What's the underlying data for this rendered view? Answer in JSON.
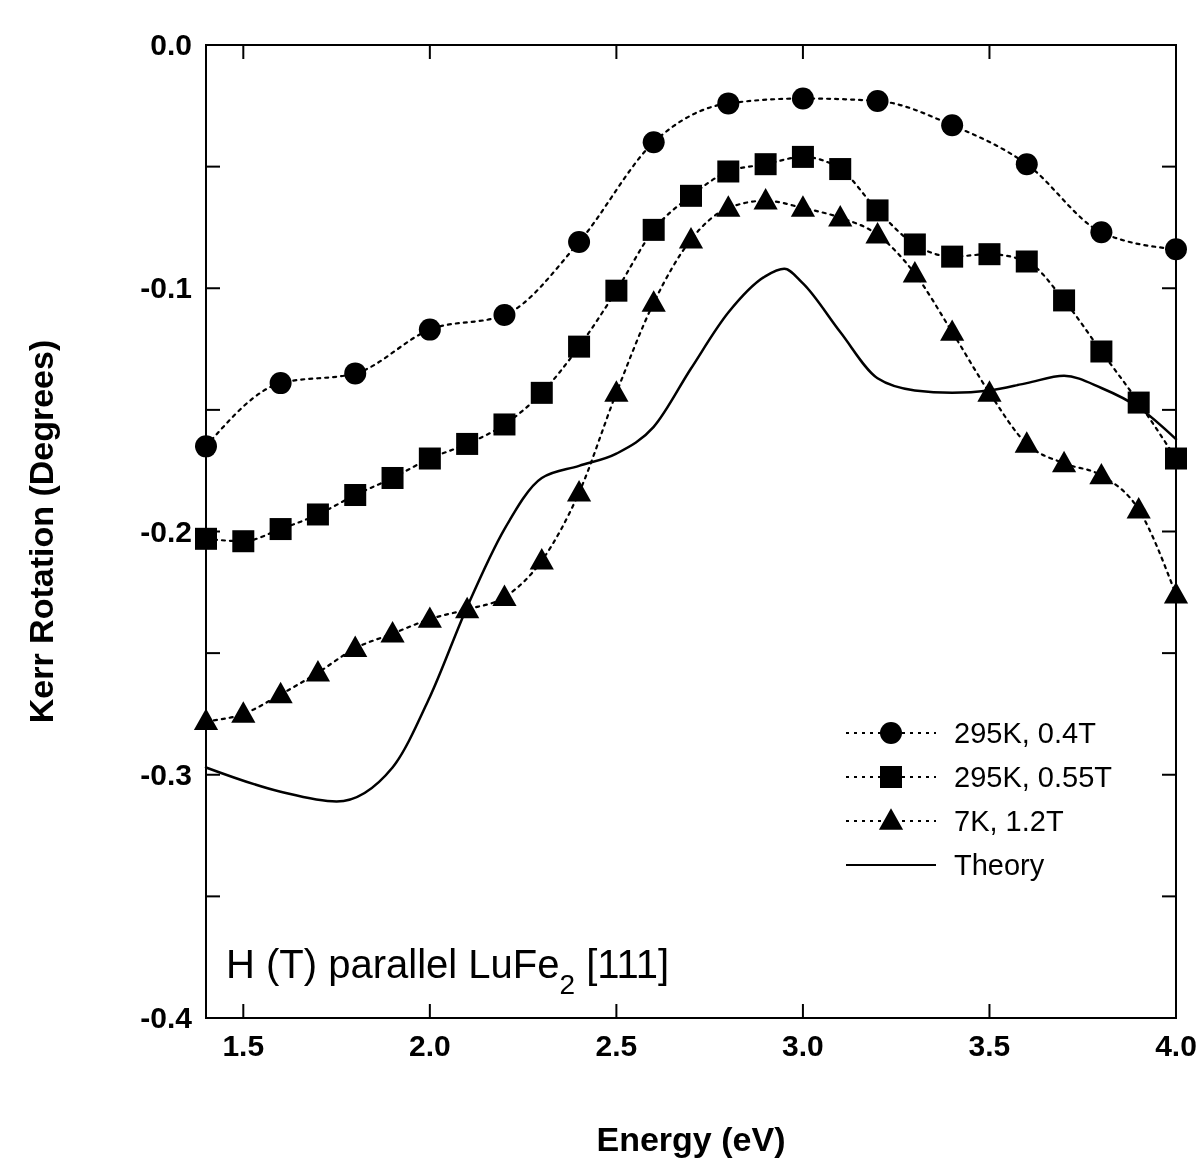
{
  "chart_data": {
    "type": "line",
    "xlabel": "Energy (eV)",
    "ylabel": "Kerr Rotation (Degrees)",
    "xlim": [
      1.4,
      4.0
    ],
    "ylim": [
      -0.4,
      0.0
    ],
    "xticks": [
      {
        "value": 1.5,
        "label": "1.5"
      },
      {
        "value": 2.0,
        "label": "2.0"
      },
      {
        "value": 2.5,
        "label": "2.5"
      },
      {
        "value": 3.0,
        "label": "3.0"
      },
      {
        "value": 3.5,
        "label": "3.5"
      },
      {
        "value": 4.0,
        "label": "4.0"
      }
    ],
    "yticks": [
      {
        "value": 0,
        "label": "0.0"
      },
      {
        "value": -0.05,
        "label": null
      },
      {
        "value": -0.1,
        "label": "-0.1"
      },
      {
        "value": -0.15,
        "label": null
      },
      {
        "value": -0.2,
        "label": "-0.2"
      },
      {
        "value": -0.25,
        "label": null
      },
      {
        "value": -0.3,
        "label": "-0.3"
      },
      {
        "value": -0.35,
        "label": null
      },
      {
        "value": -0.4,
        "label": "-0.4"
      }
    ],
    "grid": false,
    "legend": "bottom right",
    "annotations": [
      "H (T) parallel LuFe$_{2}$ [111]"
    ],
    "series": [
      {
        "name": "295K, 0.4T",
        "color": "#000000",
        "marker": "circle",
        "line_style": "dotted",
        "x": [
          1.4,
          1.6,
          1.8,
          2.0,
          2.2,
          2.4,
          2.6,
          2.8,
          3.0,
          3.2,
          3.4,
          3.6,
          3.8,
          4.0
        ],
        "values": [
          -0.165,
          -0.139,
          -0.135,
          -0.117,
          -0.111,
          -0.081,
          -0.04,
          -0.024,
          -0.022,
          -0.023,
          -0.033,
          -0.049,
          -0.077,
          -0.084
        ]
      },
      {
        "name": "295K, 0.55T",
        "color": "#000000",
        "marker": "square",
        "line_style": "dotted",
        "x": [
          1.4,
          1.5,
          1.6,
          1.7,
          1.8,
          1.9,
          2.0,
          2.1,
          2.2,
          2.3,
          2.4,
          2.5,
          2.6,
          2.7,
          2.8,
          2.9,
          3.0,
          3.1,
          3.2,
          3.3,
          3.4,
          3.5,
          3.6,
          3.7,
          3.8,
          3.9,
          4.0
        ],
        "values": [
          -0.203,
          -0.204,
          -0.199,
          -0.193,
          -0.185,
          -0.178,
          -0.17,
          -0.164,
          -0.156,
          -0.143,
          -0.124,
          -0.101,
          -0.076,
          -0.062,
          -0.052,
          -0.049,
          -0.046,
          -0.051,
          -0.068,
          -0.082,
          -0.087,
          -0.086,
          -0.089,
          -0.105,
          -0.126,
          -0.147,
          -0.17
        ]
      },
      {
        "name": "7K, 1.2T",
        "color": "#000000",
        "marker": "triangle",
        "line_style": "dotted",
        "x": [
          1.4,
          1.5,
          1.6,
          1.7,
          1.8,
          1.9,
          2.0,
          2.1,
          2.2,
          2.3,
          2.4,
          2.5,
          2.6,
          2.7,
          2.8,
          2.9,
          3.0,
          3.1,
          3.2,
          3.3,
          3.4,
          3.5,
          3.6,
          3.7,
          3.8,
          3.9,
          4.0
        ],
        "values": [
          -0.278,
          -0.275,
          -0.267,
          -0.258,
          -0.248,
          -0.242,
          -0.236,
          -0.232,
          -0.227,
          -0.212,
          -0.184,
          -0.143,
          -0.106,
          -0.08,
          -0.067,
          -0.064,
          -0.067,
          -0.071,
          -0.078,
          -0.094,
          -0.118,
          -0.143,
          -0.164,
          -0.172,
          -0.177,
          -0.191,
          -0.226
        ]
      },
      {
        "name": "Theory",
        "color": "#000000",
        "marker": "none",
        "line_style": "solid",
        "x": [
          1.4,
          1.6,
          1.75,
          1.9,
          2.0,
          2.1,
          2.2,
          2.3,
          2.4,
          2.5,
          2.6,
          2.7,
          2.8,
          2.9,
          2.95,
          3.0,
          3.1,
          3.2,
          3.3,
          3.4,
          3.5,
          3.6,
          3.7,
          3.8,
          3.9,
          4.0
        ],
        "values": [
          -0.297,
          -0.307,
          -0.311,
          -0.297,
          -0.268,
          -0.231,
          -0.199,
          -0.178,
          -0.173,
          -0.168,
          -0.157,
          -0.133,
          -0.11,
          -0.095,
          -0.092,
          -0.098,
          -0.118,
          -0.137,
          -0.142,
          -0.143,
          -0.142,
          -0.139,
          -0.136,
          -0.141,
          -0.149,
          -0.162
        ]
      }
    ]
  }
}
